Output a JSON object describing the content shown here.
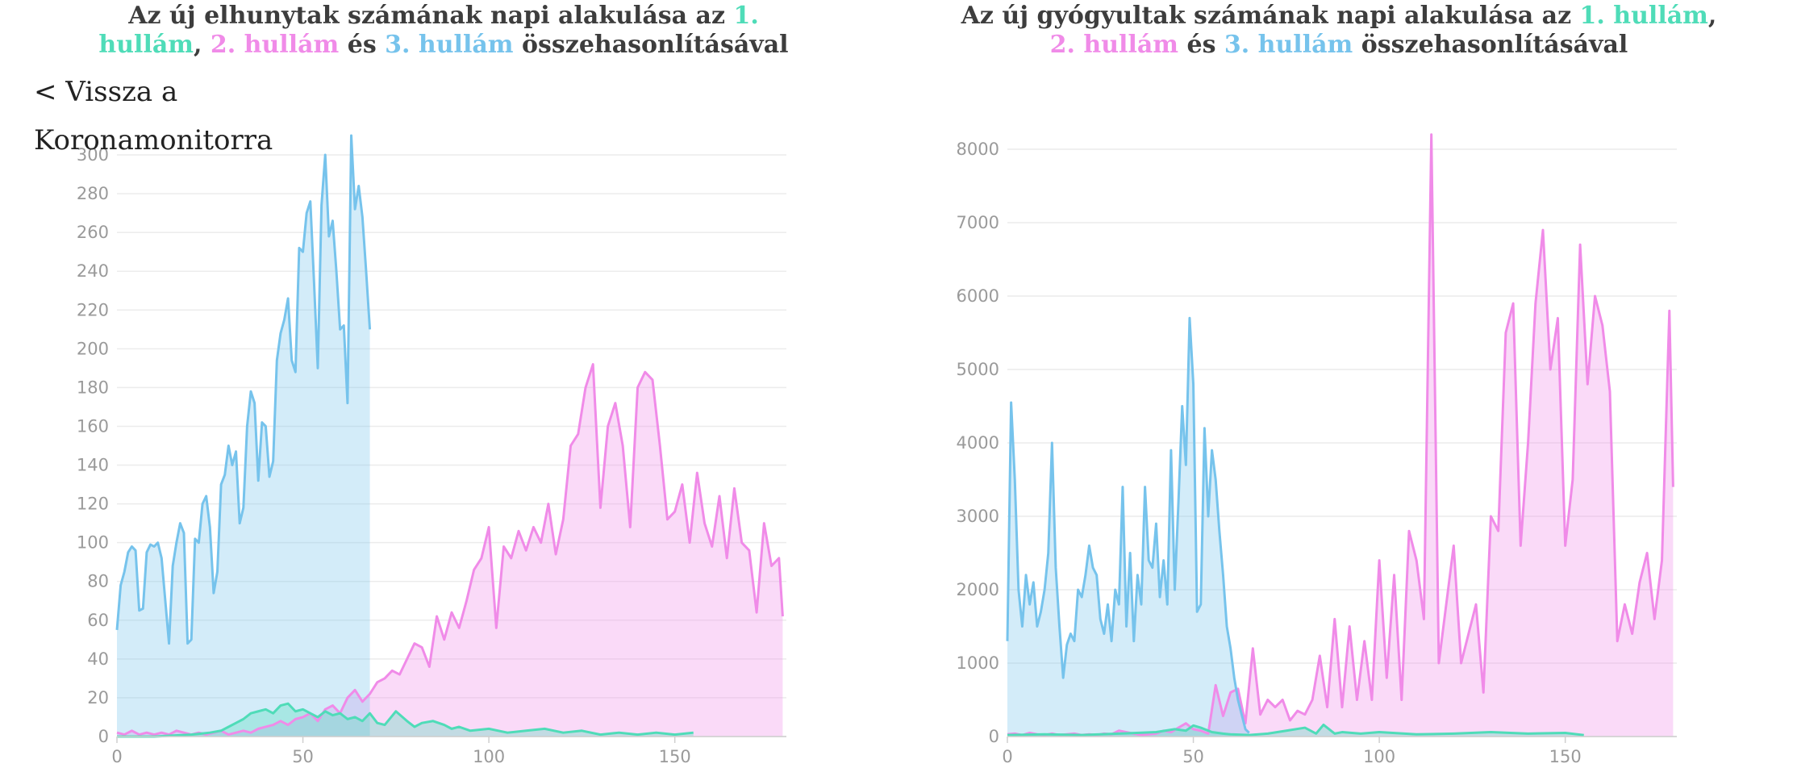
{
  "back_link": {
    "label": "< Vissza a Koronamonitorra"
  },
  "colors": {
    "wave1": "#4fdcb8",
    "wave2": "#f08be8",
    "wave3": "#76c3ec"
  },
  "charts": {
    "left": {
      "title_prefix": "Az új elhunytak számának napi alakulása az ",
      "wave1_label": "1. hullám",
      "sep1": ", ",
      "wave2_label": "2. hullám",
      "sep2": " és ",
      "wave3_label": "3. hullám",
      "title_suffix": " összehasonlításával"
    },
    "right": {
      "title_prefix": "Az új gyógyultak számának napi alakulása az ",
      "wave1_label": "1. hullám",
      "sep1": ", ",
      "wave2_label": "2. hullám",
      "sep2": " és ",
      "wave3_label": "3. hullám",
      "title_suffix": " összehasonlításával"
    }
  },
  "chart_data": [
    {
      "type": "area",
      "title": "Az új elhunytak számának napi alakulása az 1. hullám, 2. hullám és 3. hullám összehasonlításával",
      "xlim": [
        0,
        180
      ],
      "ylim": [
        0,
        300
      ],
      "xticks": [
        0,
        50,
        100,
        150
      ],
      "yticks": [
        0,
        20,
        40,
        60,
        80,
        100,
        120,
        140,
        160,
        180,
        200,
        220,
        240,
        260,
        280,
        300
      ],
      "grid": true,
      "series": [
        {
          "name": "1. hullám",
          "x": [
            0,
            10,
            20,
            25,
            28,
            30,
            32,
            34,
            36,
            38,
            40,
            42,
            44,
            46,
            48,
            50,
            52,
            54,
            56,
            58,
            60,
            62,
            64,
            66,
            68,
            70,
            72,
            75,
            78,
            80,
            82,
            85,
            88,
            90,
            92,
            95,
            100,
            105,
            110,
            115,
            120,
            125,
            130,
            135,
            140,
            145,
            150,
            155
          ],
          "y": [
            0,
            0,
            1,
            2,
            3,
            5,
            7,
            9,
            12,
            13,
            14,
            12,
            16,
            17,
            13,
            14,
            12,
            10,
            13,
            11,
            12,
            9,
            10,
            8,
            12,
            7,
            6,
            13,
            8,
            5,
            7,
            8,
            6,
            4,
            5,
            3,
            4,
            2,
            3,
            4,
            2,
            3,
            1,
            2,
            1,
            2,
            1,
            2
          ]
        },
        {
          "name": "2. hullám",
          "x": [
            0,
            2,
            4,
            6,
            8,
            10,
            12,
            14,
            16,
            18,
            20,
            22,
            24,
            26,
            28,
            30,
            32,
            34,
            36,
            38,
            40,
            42,
            44,
            46,
            48,
            50,
            52,
            54,
            56,
            58,
            60,
            62,
            64,
            66,
            68,
            70,
            72,
            74,
            76,
            78,
            80,
            82,
            84,
            86,
            88,
            90,
            92,
            94,
            96,
            98,
            100,
            102,
            104,
            106,
            108,
            110,
            112,
            114,
            116,
            118,
            120,
            122,
            124,
            126,
            128,
            130,
            132,
            134,
            136,
            138,
            140,
            142,
            144,
            146,
            148,
            150,
            152,
            154,
            156,
            158,
            160,
            162,
            164,
            166,
            168,
            170,
            172,
            174,
            176,
            178,
            179
          ],
          "y": [
            2,
            1,
            3,
            1,
            2,
            1,
            2,
            1,
            3,
            2,
            1,
            2,
            1,
            2,
            3,
            1,
            2,
            3,
            2,
            4,
            5,
            6,
            8,
            6,
            9,
            10,
            12,
            8,
            14,
            16,
            12,
            20,
            24,
            18,
            22,
            28,
            30,
            34,
            32,
            40,
            48,
            46,
            36,
            62,
            50,
            64,
            56,
            70,
            86,
            92,
            108,
            56,
            98,
            92,
            106,
            96,
            108,
            100,
            120,
            94,
            112,
            150,
            156,
            180,
            192,
            118,
            160,
            172,
            150,
            108,
            180,
            188,
            184,
            150,
            112,
            116,
            130,
            100,
            136,
            110,
            98,
            124,
            92,
            128,
            100,
            96,
            64,
            110,
            88,
            92,
            62
          ]
        },
        {
          "name": "3. hullám",
          "x": [
            0,
            1,
            2,
            3,
            4,
            5,
            6,
            7,
            8,
            9,
            10,
            11,
            12,
            13,
            14,
            15,
            16,
            17,
            18,
            19,
            20,
            21,
            22,
            23,
            24,
            25,
            26,
            27,
            28,
            29,
            30,
            31,
            32,
            33,
            34,
            35,
            36,
            37,
            38,
            39,
            40,
            41,
            42,
            43,
            44,
            45,
            46,
            47,
            48,
            49,
            50,
            51,
            52,
            53,
            54,
            55,
            56,
            57,
            58,
            59,
            60,
            61,
            62,
            63,
            64,
            65,
            66,
            67,
            68
          ],
          "y": [
            55,
            78,
            85,
            95,
            98,
            96,
            65,
            66,
            95,
            99,
            98,
            100,
            92,
            70,
            48,
            88,
            100,
            110,
            105,
            48,
            50,
            102,
            100,
            120,
            124,
            108,
            74,
            85,
            130,
            135,
            150,
            140,
            147,
            110,
            118,
            160,
            178,
            172,
            132,
            162,
            160,
            134,
            142,
            194,
            208,
            215,
            226,
            194,
            188,
            252,
            250,
            270,
            276,
            234,
            190,
            274,
            300,
            258,
            266,
            240,
            210,
            212,
            172,
            310,
            272,
            284,
            268,
            240,
            210
          ]
        }
      ]
    },
    {
      "type": "area",
      "title": "Az új gyógyultak számának napi alakulása az 1. hullám, 2. hullám és 3. hullám összehasonlításával",
      "xlim": [
        0,
        180
      ],
      "ylim": [
        0,
        8000
      ],
      "xticks": [
        0,
        50,
        100,
        150
      ],
      "yticks": [
        0,
        1000,
        2000,
        3000,
        4000,
        5000,
        6000,
        7000,
        8000
      ],
      "grid": true,
      "series": [
        {
          "name": "1. hullám",
          "x": [
            0,
            10,
            20,
            30,
            40,
            45,
            48,
            50,
            52,
            55,
            58,
            60,
            65,
            70,
            75,
            80,
            83,
            85,
            88,
            90,
            95,
            100,
            110,
            120,
            130,
            140,
            150,
            155
          ],
          "y": [
            20,
            30,
            20,
            40,
            60,
            100,
            80,
            150,
            120,
            60,
            40,
            30,
            20,
            40,
            80,
            120,
            40,
            160,
            40,
            60,
            40,
            60,
            30,
            40,
            60,
            40,
            50,
            20
          ]
        },
        {
          "name": "2. hullám",
          "x": [
            0,
            2,
            4,
            6,
            8,
            10,
            12,
            14,
            16,
            18,
            20,
            22,
            24,
            26,
            28,
            30,
            32,
            34,
            36,
            38,
            40,
            42,
            44,
            46,
            48,
            50,
            52,
            54,
            56,
            58,
            60,
            62,
            64,
            66,
            68,
            70,
            72,
            74,
            76,
            78,
            80,
            82,
            84,
            86,
            88,
            90,
            92,
            94,
            96,
            98,
            100,
            102,
            104,
            106,
            108,
            110,
            112,
            114,
            116,
            118,
            120,
            122,
            124,
            126,
            128,
            130,
            132,
            134,
            136,
            138,
            140,
            142,
            144,
            146,
            148,
            150,
            152,
            154,
            156,
            158,
            160,
            162,
            164,
            166,
            168,
            170,
            172,
            174,
            176,
            178,
            179
          ],
          "y": [
            30,
            40,
            20,
            50,
            30,
            20,
            40,
            20,
            30,
            40,
            20,
            30,
            20,
            40,
            30,
            80,
            60,
            40,
            20,
            30,
            40,
            80,
            60,
            120,
            180,
            100,
            80,
            40,
            700,
            280,
            600,
            650,
            180,
            1200,
            300,
            500,
            400,
            500,
            220,
            350,
            300,
            500,
            1100,
            400,
            1600,
            400,
            1500,
            500,
            1300,
            500,
            2400,
            800,
            2200,
            500,
            2800,
            2400,
            1600,
            8200,
            1000,
            1800,
            2600,
            1000,
            1400,
            1800,
            600,
            3000,
            2800,
            5500,
            5900,
            2600,
            4000,
            5900,
            6900,
            5000,
            5700,
            2600,
            3500,
            6700,
            4800,
            6000,
            5600,
            4700,
            1300,
            1800,
            1400,
            2100,
            2500,
            1600,
            2400,
            5800,
            3400
          ]
        },
        {
          "name": "3. hullám",
          "x": [
            0,
            1,
            2,
            3,
            4,
            5,
            6,
            7,
            8,
            9,
            10,
            11,
            12,
            13,
            14,
            15,
            16,
            17,
            18,
            19,
            20,
            21,
            22,
            23,
            24,
            25,
            26,
            27,
            28,
            29,
            30,
            31,
            32,
            33,
            34,
            35,
            36,
            37,
            38,
            39,
            40,
            41,
            42,
            43,
            44,
            45,
            46,
            47,
            48,
            49,
            50,
            51,
            52,
            53,
            54,
            55,
            56,
            57,
            58,
            59,
            60,
            61,
            62,
            63,
            64,
            65
          ],
          "y": [
            1300,
            4550,
            3500,
            2000,
            1500,
            2200,
            1800,
            2100,
            1500,
            1700,
            2000,
            2500,
            4000,
            2300,
            1500,
            800,
            1250,
            1400,
            1300,
            2000,
            1900,
            2200,
            2600,
            2300,
            2200,
            1600,
            1400,
            1800,
            1300,
            2000,
            1800,
            3400,
            1500,
            2500,
            1300,
            2200,
            1800,
            3400,
            2400,
            2300,
            2900,
            1900,
            2400,
            1800,
            3900,
            2000,
            3200,
            4500,
            3700,
            5700,
            4800,
            1700,
            1800,
            4200,
            3000,
            3900,
            3500,
            2800,
            2200,
            1500,
            1200,
            800,
            500,
            300,
            100,
            50
          ]
        }
      ]
    }
  ]
}
